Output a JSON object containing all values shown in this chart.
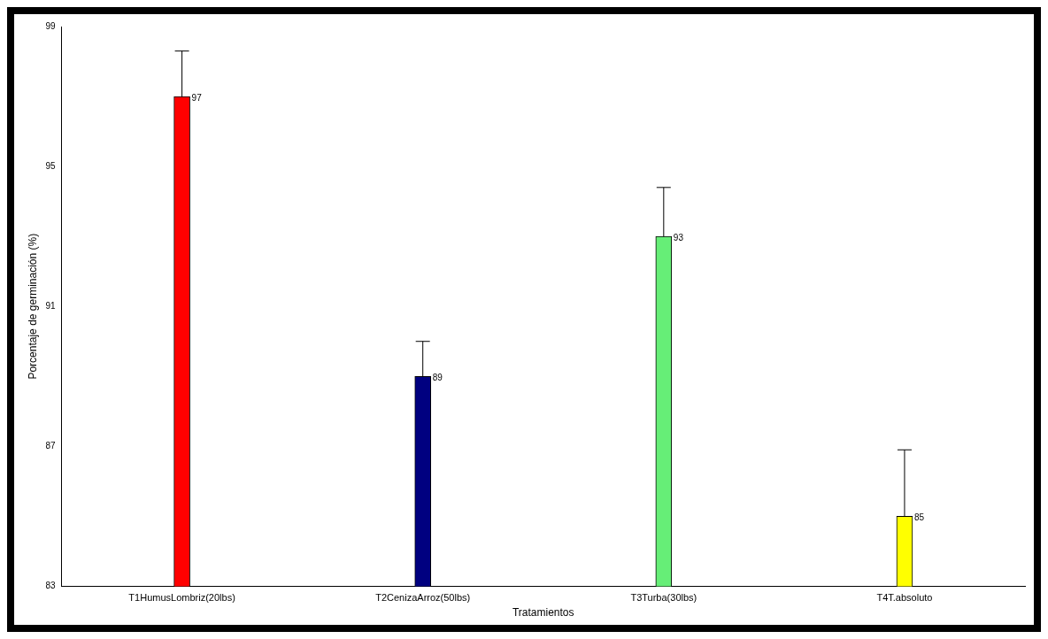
{
  "chart_data": {
    "type": "bar",
    "xlabel": "Tratamientos",
    "ylabel": "Porcentaje de germinación (%)",
    "categories": [
      "T1HumusLombriz(20lbs)",
      "T2CenizaArroz(50lbs)",
      "T3Turba(30lbs)",
      "T4T.absoluto"
    ],
    "values": [
      97,
      89,
      93,
      85
    ],
    "colors": [
      "#ff0000",
      "#000080",
      "#66ee77",
      "#ffff00"
    ],
    "errors": [
      1.3,
      1.0,
      1.4,
      1.9
    ],
    "data_labels": true,
    "ylim": [
      83,
      99
    ],
    "yticks": [
      83,
      87,
      91,
      95,
      99
    ],
    "grid": false,
    "legend": false
  }
}
